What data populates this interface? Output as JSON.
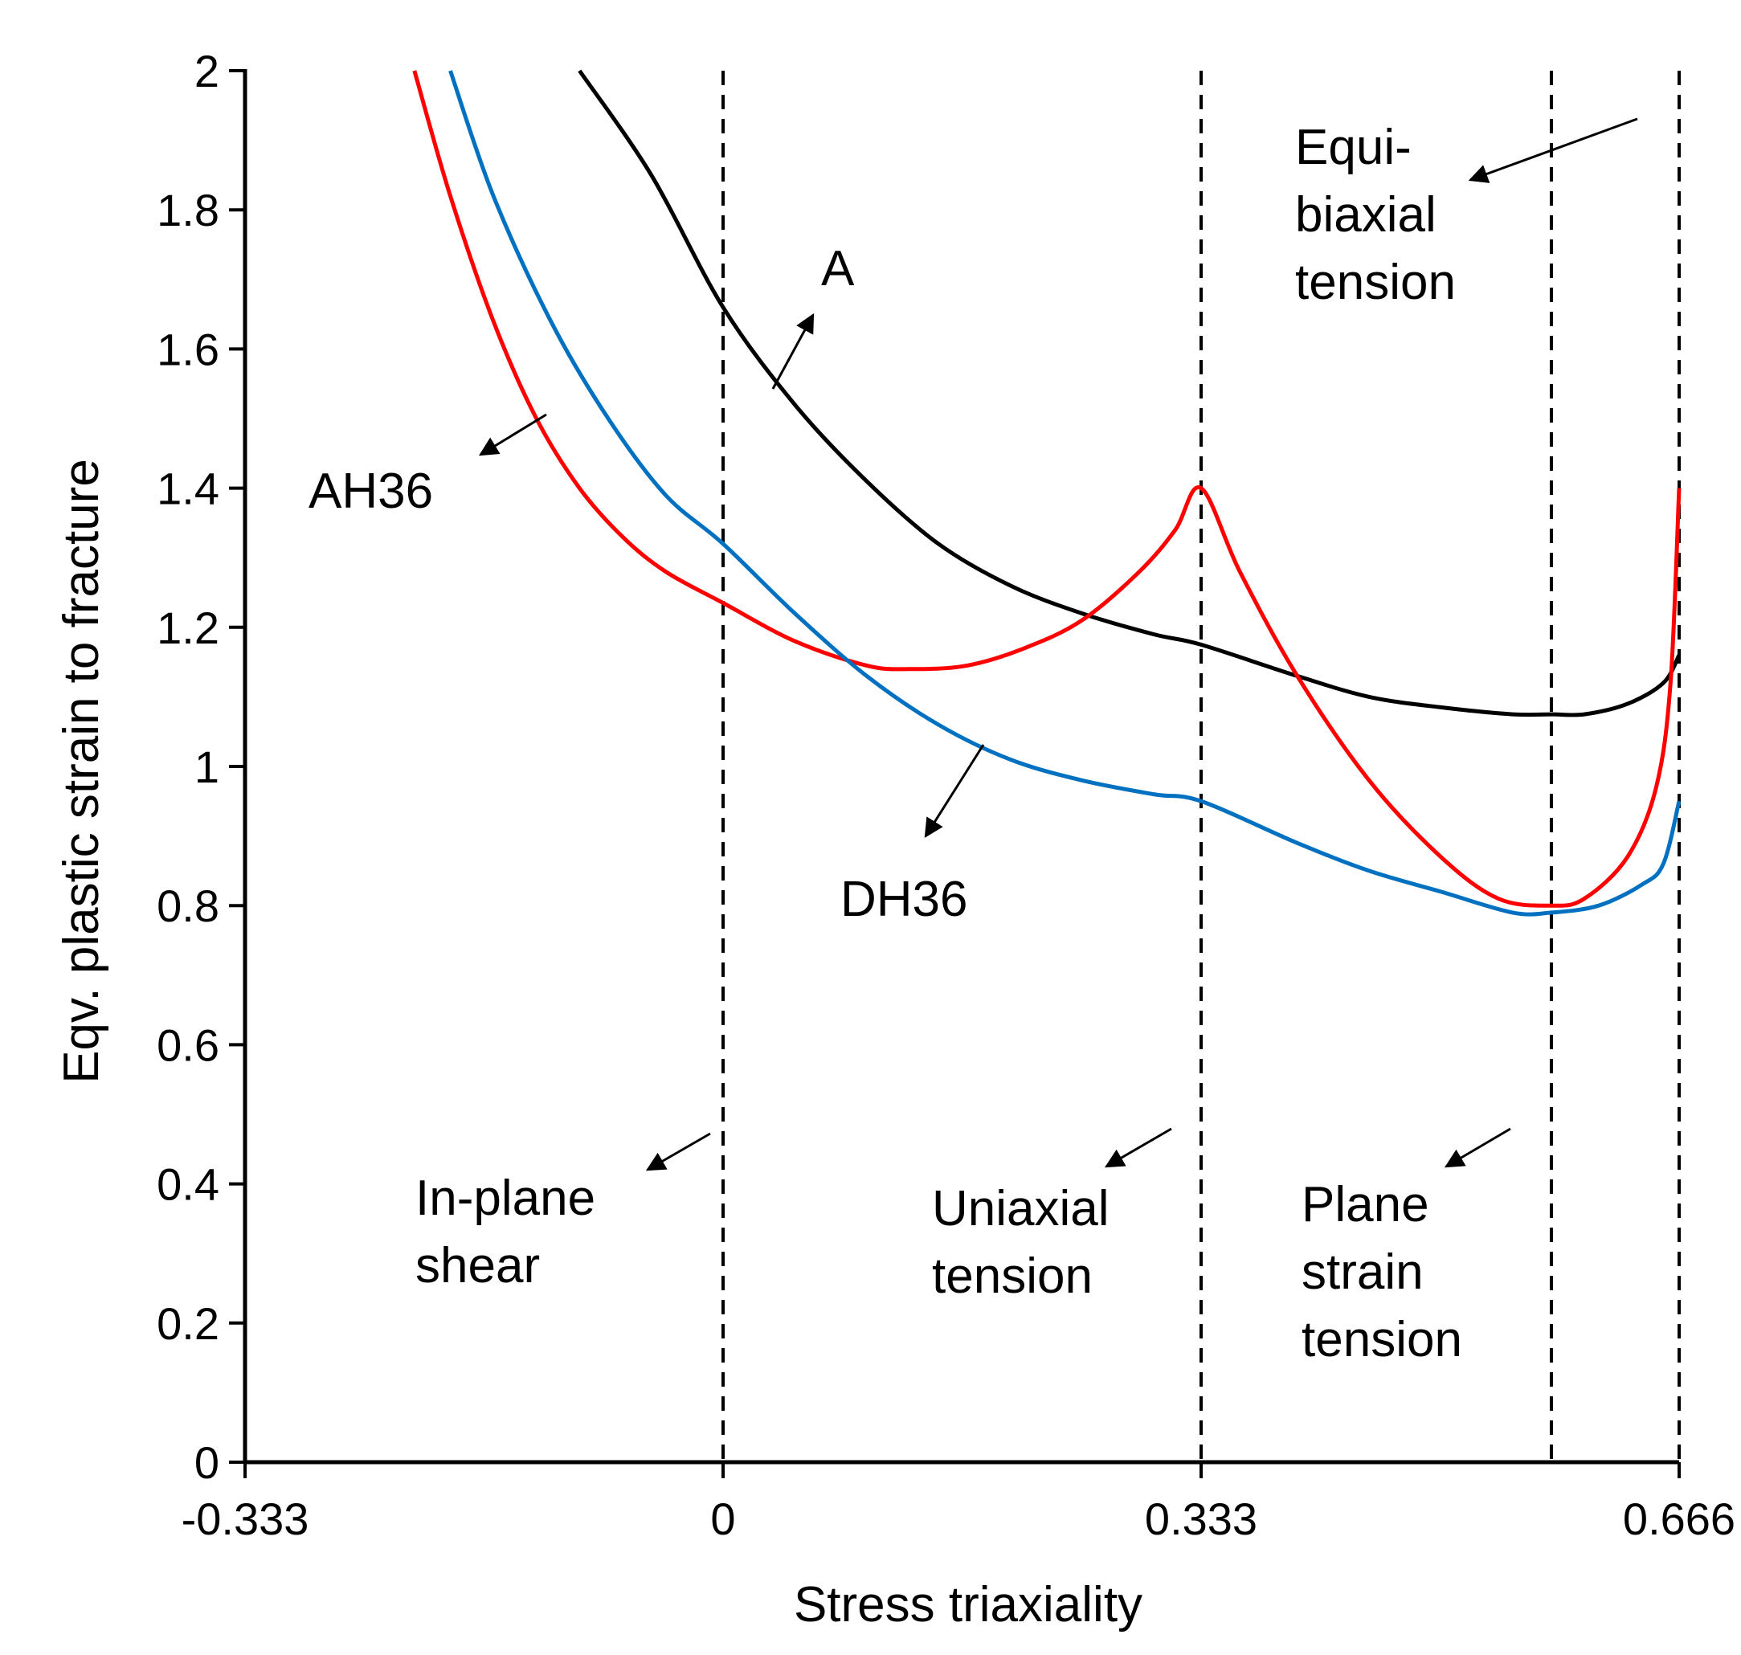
{
  "chart_data": {
    "type": "line",
    "title": "",
    "xlabel": "Stress triaxiality",
    "ylabel": "Eqv. plastic strain to fracture",
    "xlim": [
      -0.333,
      0.666
    ],
    "ylim": [
      0,
      2
    ],
    "x_ticks": [
      -0.333,
      0,
      0.333,
      0.666
    ],
    "x_tick_labels": [
      "-0.333",
      "0",
      "0.333",
      "0.666"
    ],
    "y_ticks": [
      0,
      0.2,
      0.4,
      0.6,
      0.8,
      1,
      1.2,
      1.4,
      1.6,
      1.8,
      2
    ],
    "y_tick_labels": [
      "0",
      "0.2",
      "0.4",
      "0.6",
      "0.8",
      "1",
      "1.2",
      "1.4",
      "1.6",
      "1.8",
      "2"
    ],
    "grid": false,
    "reference_lines": [
      {
        "x": 0,
        "style": "dashed"
      },
      {
        "x": 0.333,
        "style": "dashed"
      },
      {
        "x": 0.577,
        "style": "dashed"
      },
      {
        "x": 0.666,
        "style": "dashed"
      }
    ],
    "series": [
      {
        "name": "A",
        "color": "#000000",
        "points": [
          [
            -0.1,
            2.0
          ],
          [
            -0.05,
            1.85
          ],
          [
            0,
            1.66
          ],
          [
            0.05,
            1.52
          ],
          [
            0.1,
            1.41
          ],
          [
            0.15,
            1.32
          ],
          [
            0.2,
            1.26
          ],
          [
            0.25,
            1.22
          ],
          [
            0.3,
            1.19
          ],
          [
            0.333,
            1.175
          ],
          [
            0.4,
            1.13
          ],
          [
            0.45,
            1.1
          ],
          [
            0.5,
            1.085
          ],
          [
            0.55,
            1.075
          ],
          [
            0.577,
            1.075
          ],
          [
            0.6,
            1.075
          ],
          [
            0.63,
            1.09
          ],
          [
            0.655,
            1.12
          ],
          [
            0.666,
            1.16
          ]
        ]
      },
      {
        "name": "AH36",
        "color": "#ff0000",
        "points": [
          [
            -0.215,
            2.0
          ],
          [
            -0.19,
            1.82
          ],
          [
            -0.16,
            1.64
          ],
          [
            -0.13,
            1.5
          ],
          [
            -0.1,
            1.4
          ],
          [
            -0.07,
            1.33
          ],
          [
            -0.04,
            1.28
          ],
          [
            0,
            1.235
          ],
          [
            0.05,
            1.18
          ],
          [
            0.1,
            1.145
          ],
          [
            0.13,
            1.14
          ],
          [
            0.17,
            1.145
          ],
          [
            0.21,
            1.17
          ],
          [
            0.25,
            1.21
          ],
          [
            0.29,
            1.28
          ],
          [
            0.315,
            1.34
          ],
          [
            0.333,
            1.4
          ],
          [
            0.36,
            1.28
          ],
          [
            0.4,
            1.13
          ],
          [
            0.45,
            0.98
          ],
          [
            0.5,
            0.87
          ],
          [
            0.54,
            0.81
          ],
          [
            0.577,
            0.8
          ],
          [
            0.6,
            0.81
          ],
          [
            0.63,
            0.87
          ],
          [
            0.65,
            0.97
          ],
          [
            0.66,
            1.12
          ],
          [
            0.666,
            1.4
          ]
        ]
      },
      {
        "name": "DH36",
        "color": "#0070c0",
        "points": [
          [
            -0.19,
            2.0
          ],
          [
            -0.16,
            1.82
          ],
          [
            -0.12,
            1.64
          ],
          [
            -0.08,
            1.5
          ],
          [
            -0.04,
            1.39
          ],
          [
            0,
            1.32
          ],
          [
            0.05,
            1.22
          ],
          [
            0.1,
            1.13
          ],
          [
            0.15,
            1.06
          ],
          [
            0.2,
            1.01
          ],
          [
            0.25,
            0.98
          ],
          [
            0.3,
            0.96
          ],
          [
            0.333,
            0.95
          ],
          [
            0.4,
            0.89
          ],
          [
            0.45,
            0.85
          ],
          [
            0.5,
            0.82
          ],
          [
            0.55,
            0.79
          ],
          [
            0.577,
            0.79
          ],
          [
            0.61,
            0.8
          ],
          [
            0.64,
            0.83
          ],
          [
            0.655,
            0.86
          ],
          [
            0.666,
            0.95
          ]
        ]
      }
    ],
    "annotations": [
      {
        "id": "A",
        "lines": [
          "A"
        ]
      },
      {
        "id": "AH36",
        "lines": [
          "AH36"
        ]
      },
      {
        "id": "DH36",
        "lines": [
          "DH36"
        ]
      },
      {
        "id": "equibiaxial",
        "lines": [
          "Equi-",
          "biaxial",
          "tension"
        ]
      },
      {
        "id": "inplane",
        "lines": [
          "In-plane",
          "shear"
        ]
      },
      {
        "id": "uniaxial",
        "lines": [
          "Uniaxial",
          "tension"
        ]
      },
      {
        "id": "planestrain",
        "lines": [
          "Plane",
          "strain",
          "tension"
        ]
      }
    ]
  }
}
